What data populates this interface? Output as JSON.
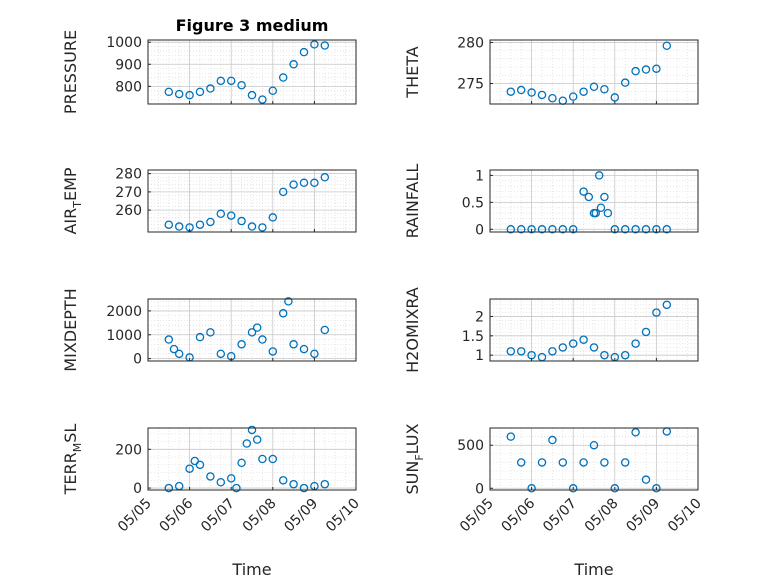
{
  "title": "Figure 3 medium",
  "marker_color": "#0072BD",
  "x_axis": {
    "label": "Time",
    "ticks": [
      "05/05",
      "05/06",
      "05/07",
      "05/08",
      "05/09",
      "05/10"
    ]
  },
  "chart_data": [
    {
      "type": "scatter",
      "name": "PRESSURE",
      "ylabel": "PRESSURE",
      "ylim": [
        720,
        1010
      ],
      "yticks": [
        800,
        900,
        1000
      ],
      "ytick_labels": [
        "800",
        "900",
        "1000"
      ],
      "grid": true,
      "minor_grid": true,
      "x": [
        "05/05 12:00",
        "05/05 18:00",
        "05/06 00:00",
        "05/06 06:00",
        "05/06 12:00",
        "05/06 18:00",
        "05/07 00:00",
        "05/07 06:00",
        "05/07 12:00",
        "05/07 18:00",
        "05/08 00:00",
        "05/08 06:00",
        "05/08 12:00",
        "05/08 18:00",
        "05/09 00:00",
        "05/09 06:00"
      ],
      "y": [
        775,
        765,
        760,
        775,
        790,
        825,
        825,
        805,
        760,
        740,
        780,
        840,
        900,
        955,
        990,
        985
      ]
    },
    {
      "type": "scatter",
      "name": "THETA",
      "ylabel": "THETA",
      "ylim": [
        272.5,
        280.3
      ],
      "yticks": [
        275,
        280
      ],
      "ytick_labels": [
        "275",
        "280"
      ],
      "grid": true,
      "minor_grid": true,
      "x": [
        "05/05 12:00",
        "05/05 18:00",
        "05/06 00:00",
        "05/06 06:00",
        "05/06 12:00",
        "05/06 18:00",
        "05/07 00:00",
        "05/07 06:00",
        "05/07 12:00",
        "05/07 18:00",
        "05/08 00:00",
        "05/08 06:00",
        "05/08 12:00",
        "05/08 18:00",
        "05/09 00:00",
        "05/09 06:00"
      ],
      "y": [
        274.0,
        274.2,
        273.9,
        273.6,
        273.2,
        272.9,
        273.4,
        274.0,
        274.6,
        274.3,
        273.3,
        275.1,
        276.5,
        276.7,
        276.8,
        279.6
      ]
    },
    {
      "type": "scatter",
      "name": "AIR_TEMP",
      "ylabel_main": "AIR",
      "ylabel_sub": "T",
      "ylabel_rest": "EMP",
      "ylim": [
        248,
        282
      ],
      "yticks": [
        260,
        270,
        280
      ],
      "ytick_labels": [
        "260",
        "270",
        "280"
      ],
      "grid": true,
      "minor_grid": true,
      "x": [
        "05/05 12:00",
        "05/05 18:00",
        "05/06 00:00",
        "05/06 06:00",
        "05/06 12:00",
        "05/06 18:00",
        "05/07 00:00",
        "05/07 06:00",
        "05/07 12:00",
        "05/07 18:00",
        "05/08 00:00",
        "05/08 06:00",
        "05/08 12:00",
        "05/08 18:00",
        "05/09 00:00",
        "05/09 06:00"
      ],
      "y": [
        252,
        251,
        250.5,
        252,
        253.5,
        258,
        257,
        254,
        251,
        250.5,
        256,
        270,
        274,
        275,
        275,
        278
      ]
    },
    {
      "type": "scatter",
      "name": "RAINFALL",
      "ylabel": "RAINFALL",
      "ylim": [
        -0.05,
        1.1
      ],
      "yticks": [
        0,
        0.5,
        1
      ],
      "ytick_labels": [
        "0",
        "0.5",
        "1"
      ],
      "grid": true,
      "minor_grid": true,
      "x": [
        "05/05 12:00",
        "05/05 18:00",
        "05/06 00:00",
        "05/06 06:00",
        "05/06 12:00",
        "05/06 18:00",
        "05/07 00:00",
        "05/07 06:00",
        "05/07 09:00",
        "05/07 12:00",
        "05/07 13:00",
        "05/07 15:00",
        "05/07 16:00",
        "05/07 18:00",
        "05/07 20:00",
        "05/08 00:00",
        "05/08 06:00",
        "05/08 12:00",
        "05/08 18:00",
        "05/09 00:00",
        "05/09 06:00"
      ],
      "y": [
        0,
        0,
        0,
        0,
        0,
        0,
        0,
        0.7,
        0.6,
        0.3,
        0.3,
        1.0,
        0.4,
        0.6,
        0.3,
        0,
        0,
        0,
        0,
        0,
        0
      ]
    },
    {
      "type": "scatter",
      "name": "MIXDEPTH",
      "ylabel": "MIXDEPTH",
      "ylim": [
        -100,
        2500
      ],
      "yticks": [
        0,
        1000,
        2000
      ],
      "ytick_labels": [
        "0",
        "1000",
        "2000"
      ],
      "grid": true,
      "minor_grid": true,
      "x": [
        "05/05 12:00",
        "05/05 15:00",
        "05/05 18:00",
        "05/06 00:00",
        "05/06 06:00",
        "05/06 12:00",
        "05/06 18:00",
        "05/07 00:00",
        "05/07 06:00",
        "05/07 12:00",
        "05/07 15:00",
        "05/07 18:00",
        "05/08 00:00",
        "05/08 06:00",
        "05/08 09:00",
        "05/08 12:00",
        "05/08 18:00",
        "05/09 00:00",
        "05/09 06:00"
      ],
      "y": [
        800,
        400,
        200,
        50,
        900,
        1100,
        200,
        100,
        600,
        1100,
        1300,
        800,
        300,
        1900,
        2400,
        600,
        400,
        200,
        1200
      ]
    },
    {
      "type": "scatter",
      "name": "H2OMIXRA",
      "ylabel": "H2OMIXRA",
      "ylim": [
        0.85,
        2.45
      ],
      "yticks": [
        1,
        1.5,
        2
      ],
      "ytick_labels": [
        "1",
        "1.5",
        "2"
      ],
      "grid": true,
      "minor_grid": true,
      "x": [
        "05/05 12:00",
        "05/05 18:00",
        "05/06 00:00",
        "05/06 06:00",
        "05/06 12:00",
        "05/06 18:00",
        "05/07 00:00",
        "05/07 06:00",
        "05/07 12:00",
        "05/07 18:00",
        "05/08 00:00",
        "05/08 06:00",
        "05/08 12:00",
        "05/08 18:00",
        "05/09 00:00",
        "05/09 06:00"
      ],
      "y": [
        1.1,
        1.1,
        1.0,
        0.95,
        1.1,
        1.2,
        1.3,
        1.4,
        1.2,
        1.0,
        0.95,
        1.0,
        1.3,
        1.6,
        2.1,
        2.3
      ]
    },
    {
      "type": "scatter",
      "name": "TERR_MSL",
      "ylabel_main": "TERR",
      "ylabel_sub": "M",
      "ylabel_rest": "SL",
      "ylim": [
        -10,
        310
      ],
      "yticks": [
        0,
        200
      ],
      "ytick_labels": [
        "0",
        "200"
      ],
      "grid": true,
      "minor_grid": true,
      "x": [
        "05/05 12:00",
        "05/05 18:00",
        "05/06 00:00",
        "05/06 03:00",
        "05/06 06:00",
        "05/06 12:00",
        "05/06 18:00",
        "05/07 00:00",
        "05/07 03:00",
        "05/07 06:00",
        "05/07 09:00",
        "05/07 12:00",
        "05/07 15:00",
        "05/07 18:00",
        "05/08 00:00",
        "05/08 06:00",
        "05/08 12:00",
        "05/08 18:00",
        "05/09 00:00",
        "05/09 06:00"
      ],
      "y": [
        0,
        10,
        100,
        140,
        120,
        60,
        30,
        50,
        0,
        130,
        230,
        300,
        250,
        150,
        150,
        40,
        20,
        0,
        10,
        20
      ]
    },
    {
      "type": "scatter",
      "name": "SUN_FLUX",
      "ylabel_main": "SUN",
      "ylabel_sub": "F",
      "ylabel_rest": "LUX",
      "ylim": [
        -20,
        700
      ],
      "yticks": [
        0,
        500
      ],
      "ytick_labels": [
        "0",
        "500"
      ],
      "grid": true,
      "minor_grid": true,
      "x": [
        "05/05 12:00",
        "05/05 18:00",
        "05/06 00:00",
        "05/06 06:00",
        "05/06 12:00",
        "05/06 18:00",
        "05/07 00:00",
        "05/07 06:00",
        "05/07 12:00",
        "05/07 18:00",
        "05/08 00:00",
        "05/08 06:00",
        "05/08 12:00",
        "05/08 18:00",
        "05/09 00:00",
        "05/09 06:00"
      ],
      "y": [
        600,
        300,
        0,
        300,
        560,
        300,
        0,
        300,
        500,
        300,
        0,
        300,
        650,
        100,
        0,
        660
      ]
    }
  ]
}
